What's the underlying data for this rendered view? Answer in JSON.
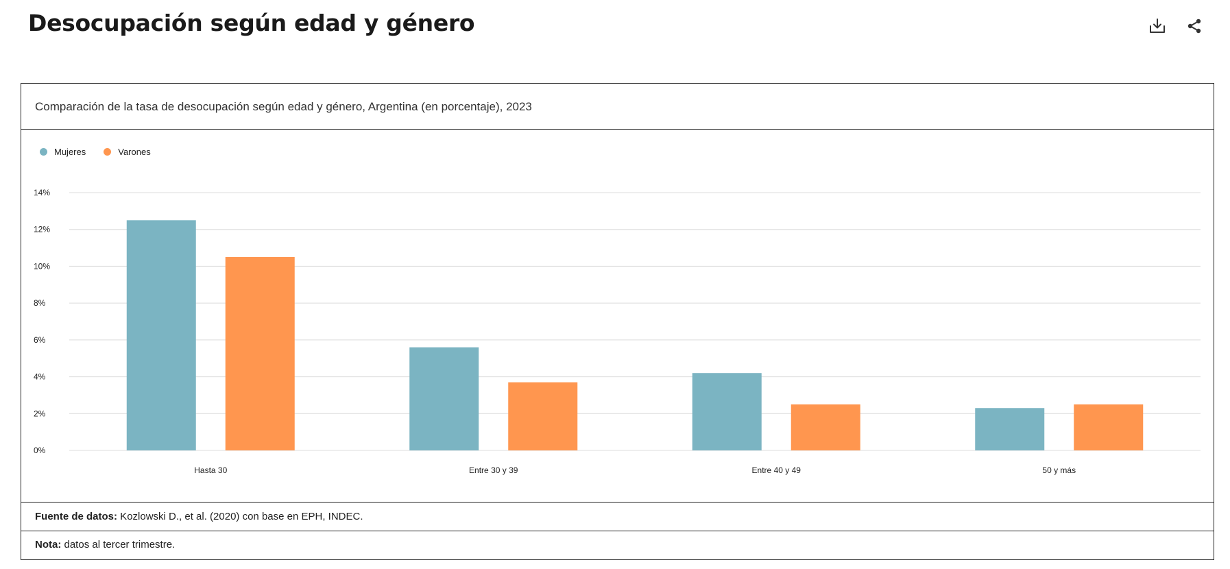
{
  "page": {
    "title": "Desocupación según edad y género"
  },
  "toolbar": {
    "download_icon": "download-icon",
    "share_icon": "share-icon"
  },
  "card": {
    "subtitle": "Comparación de la tasa de desocupación según edad y género, Argentina (en porcentaje), 2023",
    "source_label": "Fuente de datos:",
    "source_text": " Kozlowski D., et al. (2020) con base en EPH, INDEC.",
    "note_label": "Nota:",
    "note_text": " datos al tercer trimestre."
  },
  "chart_data": {
    "type": "bar",
    "categories": [
      "Hasta 30",
      "Entre 30 y 39",
      "Entre 40 y 49",
      "50 y más"
    ],
    "series": [
      {
        "name": "Mujeres",
        "color": "#7bb4c2",
        "values": [
          12.5,
          5.6,
          4.2,
          2.3
        ]
      },
      {
        "name": "Varones",
        "color": "#ff964f",
        "values": [
          10.5,
          3.7,
          2.5,
          2.5
        ]
      }
    ],
    "ylim": [
      0,
      14
    ],
    "yticks": [
      0,
      2,
      4,
      6,
      8,
      10,
      12,
      14
    ],
    "ytick_suffix": "%",
    "grid": true,
    "legend_position": "top-left",
    "title": "",
    "xlabel": "",
    "ylabel": ""
  }
}
